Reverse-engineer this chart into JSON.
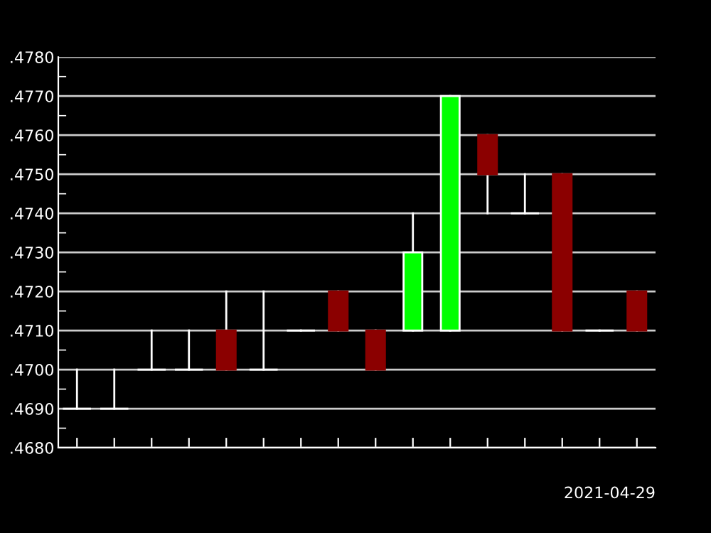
{
  "chart_data": {
    "type": "candlestick",
    "xlabel": "2021-04-29",
    "categories": [
      null,
      null,
      null,
      null,
      null,
      null,
      null,
      null,
      null,
      null,
      null,
      null,
      null,
      null,
      null,
      null
    ],
    "ohlc": [
      [
        0.469,
        0.47,
        0.469,
        0.469
      ],
      [
        0.469,
        0.47,
        0.469,
        0.469
      ],
      [
        0.47,
        0.471,
        0.47,
        0.47
      ],
      [
        0.47,
        0.471,
        0.47,
        0.47
      ],
      [
        0.471,
        0.472,
        0.47,
        0.47
      ],
      [
        0.47,
        0.472,
        0.47,
        0.47
      ],
      [
        0.471,
        0.471,
        0.471,
        0.471
      ],
      [
        0.472,
        0.472,
        0.471,
        0.471
      ],
      [
        0.471,
        0.471,
        0.47,
        0.47
      ],
      [
        0.471,
        0.474,
        0.471,
        0.473
      ],
      [
        0.471,
        0.477,
        0.471,
        0.477
      ],
      [
        0.476,
        0.476,
        0.474,
        0.475
      ],
      [
        0.474,
        0.475,
        0.474,
        0.474
      ],
      [
        0.475,
        0.475,
        0.471,
        0.471
      ],
      [
        0.471,
        0.471,
        0.471,
        0.471
      ],
      [
        0.472,
        0.472,
        0.471,
        0.471
      ]
    ],
    "colors": [
      "#ffffff",
      "#ffffff",
      "#ffffff",
      "#ffffff",
      "#8b0000",
      "#ffffff",
      "#ffffff",
      "#8b0000",
      "#8b0000",
      "#00ff00",
      "#00ff00",
      "#8b0000",
      "#ffffff",
      "#8b0000",
      "#ffffff",
      "#8b0000"
    ],
    "ylim": [
      0.468,
      0.478
    ],
    "yticks": [
      {
        "value": 0.468,
        "label": ".4680"
      },
      {
        "value": 0.469,
        "label": ".4690"
      },
      {
        "value": 0.47,
        "label": ".4700"
      },
      {
        "value": 0.471,
        "label": ".4710"
      },
      {
        "value": 0.472,
        "label": ".4720"
      },
      {
        "value": 0.473,
        "label": ".4730"
      },
      {
        "value": 0.474,
        "label": ".4740"
      },
      {
        "value": 0.475,
        "label": ".4750"
      },
      {
        "value": 0.476,
        "label": ".4760"
      },
      {
        "value": 0.477,
        "label": ".4770"
      },
      {
        "value": 0.478,
        "label": ".4780"
      },
      {
        "value": 0.4685,
        "label": null
      },
      {
        "value": 0.4695,
        "label": null
      },
      {
        "value": 0.4705,
        "label": null
      },
      {
        "value": 0.4715,
        "label": null
      },
      {
        "value": 0.4725,
        "label": null
      },
      {
        "value": 0.4735,
        "label": null
      },
      {
        "value": 0.4745,
        "label": null
      },
      {
        "value": 0.4755,
        "label": null
      },
      {
        "value": 0.4765,
        "label": null
      },
      {
        "value": 0.4775,
        "label": null
      }
    ],
    "grid": "y"
  }
}
